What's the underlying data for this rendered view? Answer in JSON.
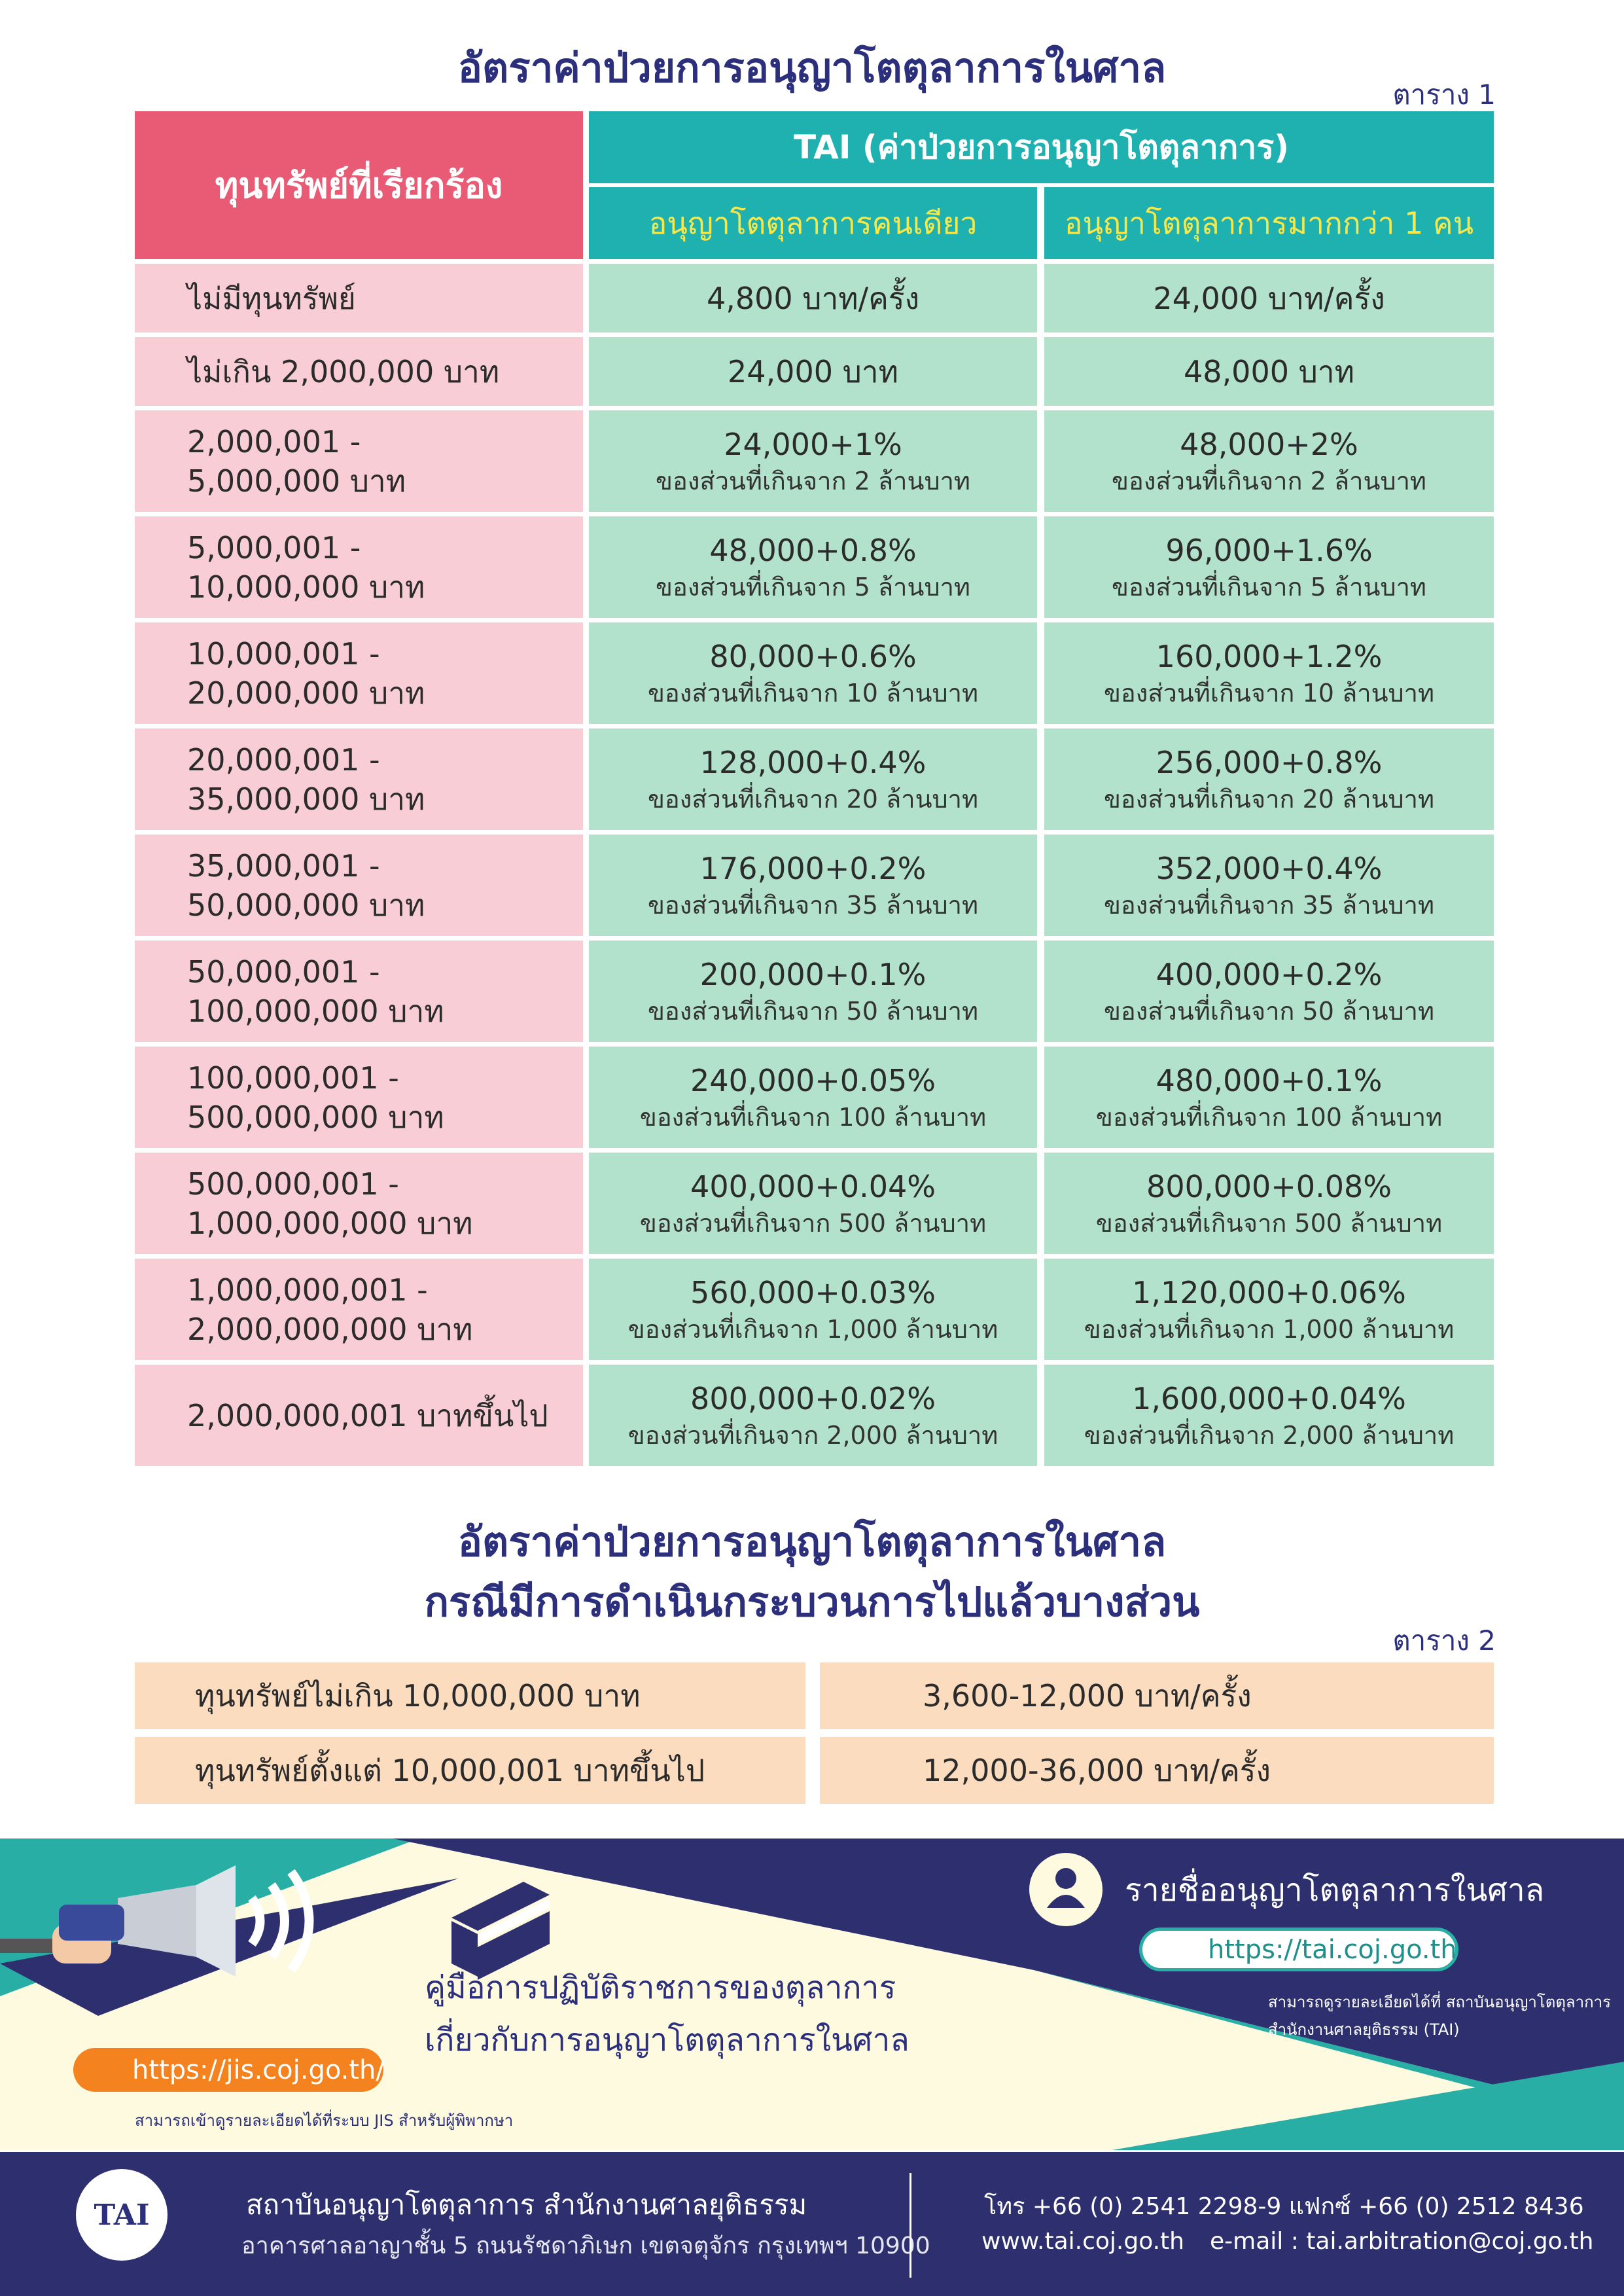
{
  "title": "อัตราค่าป่วยการอนุญาโตตุลาการในศาล",
  "table1": {
    "label": "ตาราง 1",
    "header": {
      "capital": "ทุนทรัพย์ที่เรียกร้อง",
      "tai": "TAI (ค่าป่วยการอนุญาโตตุลาการ)",
      "single": "อนุญาโตตุลาการคนเดียว",
      "multiple": "อนุญาโตตุลาการมากกว่า 1 คน"
    },
    "rows": [
      {
        "capital": [
          "ไม่มีทุนทรัพย์"
        ],
        "single": [
          "4,800 บาท/ครั้ง"
        ],
        "multiple": [
          "24,000 บาท/ครั้ง"
        ]
      },
      {
        "capital": [
          "ไม่เกิน 2,000,000 บาท"
        ],
        "single": [
          "24,000 บาท"
        ],
        "multiple": [
          "48,000 บาท"
        ]
      },
      {
        "capital": [
          "2,000,001 -",
          "5,000,000 บาท"
        ],
        "single": [
          "24,000+1%",
          "ของส่วนที่เกินจาก 2 ล้านบาท"
        ],
        "multiple": [
          "48,000+2%",
          "ของส่วนที่เกินจาก 2 ล้านบาท"
        ]
      },
      {
        "capital": [
          "5,000,001 -",
          "10,000,000 บาท"
        ],
        "single": [
          "48,000+0.8%",
          "ของส่วนที่เกินจาก 5 ล้านบาท"
        ],
        "multiple": [
          "96,000+1.6%",
          "ของส่วนที่เกินจาก 5 ล้านบาท"
        ]
      },
      {
        "capital": [
          "10,000,001 -",
          "20,000,000 บาท"
        ],
        "single": [
          "80,000+0.6%",
          "ของส่วนที่เกินจาก 10 ล้านบาท"
        ],
        "multiple": [
          "160,000+1.2%",
          "ของส่วนที่เกินจาก 10 ล้านบาท"
        ]
      },
      {
        "capital": [
          "20,000,001 -",
          "35,000,000 บาท"
        ],
        "single": [
          "128,000+0.4%",
          "ของส่วนที่เกินจาก 20 ล้านบาท"
        ],
        "multiple": [
          "256,000+0.8%",
          "ของส่วนที่เกินจาก 20 ล้านบาท"
        ]
      },
      {
        "capital": [
          "35,000,001 -",
          "50,000,000 บาท"
        ],
        "single": [
          "176,000+0.2%",
          "ของส่วนที่เกินจาก 35 ล้านบาท"
        ],
        "multiple": [
          "352,000+0.4%",
          "ของส่วนที่เกินจาก 35 ล้านบาท"
        ]
      },
      {
        "capital": [
          "50,000,001 -",
          "100,000,000 บาท"
        ],
        "single": [
          "200,000+0.1%",
          "ของส่วนที่เกินจาก 50 ล้านบาท"
        ],
        "multiple": [
          "400,000+0.2%",
          "ของส่วนที่เกินจาก 50 ล้านบาท"
        ]
      },
      {
        "capital": [
          "100,000,001 -",
          "500,000,000 บาท"
        ],
        "single": [
          "240,000+0.05%",
          "ของส่วนที่เกินจาก 100 ล้านบาท"
        ],
        "multiple": [
          "480,000+0.1%",
          "ของส่วนที่เกินจาก 100 ล้านบาท"
        ]
      },
      {
        "capital": [
          "500,000,001 -",
          "1,000,000,000 บาท"
        ],
        "single": [
          "400,000+0.04%",
          "ของส่วนที่เกินจาก 500 ล้านบาท"
        ],
        "multiple": [
          "800,000+0.08%",
          "ของส่วนที่เกินจาก 500 ล้านบาท"
        ]
      },
      {
        "capital": [
          "1,000,000,001 -",
          "2,000,000,000 บาท"
        ],
        "single": [
          "560,000+0.03%",
          "ของส่วนที่เกินจาก 1,000 ล้านบาท"
        ],
        "multiple": [
          "1,120,000+0.06%",
          "ของส่วนที่เกินจาก 1,000 ล้านบาท"
        ]
      },
      {
        "capital": [
          "2,000,000,001 บาทขึ้นไป"
        ],
        "single": [
          "800,000+0.02%",
          "ของส่วนที่เกินจาก 2,000 ล้านบาท"
        ],
        "multiple": [
          "1,600,000+0.04%",
          "ของส่วนที่เกินจาก 2,000 ล้านบาท"
        ]
      }
    ]
  },
  "table2": {
    "title": [
      "อัตราค่าป่วยการอนุญาโตตุลาการในศาล",
      "กรณีมีการดำเนินกระบวนการไปแล้วบางส่วน"
    ],
    "label": "ตาราง 2",
    "rows": [
      [
        "ทุนทรัพย์ไม่เกิน 10,000,000 บาท",
        "3,600-12,000 บาท/ครั้ง"
      ],
      [
        "ทุนทรัพย์ตั้งแต่ 10,000,001 บาทขึ้นไป",
        "12,000-36,000 บาท/ครั้ง"
      ]
    ]
  },
  "banner": {
    "manual": [
      "คู่มือการปฏิบัติราชการของตุลาการ",
      "เกี่ยวกับการอนุญาโตตุลาการในศาล"
    ],
    "jis_link": "https://jis.coj.go.th/",
    "jis_note": "สามารถเข้าดูรายละเอียดได้ที่ระบบ JIS สำหรับผู้พิพากษา",
    "list_title": "รายชื่ออนุญาโตตุลาการในศาล",
    "tai_link": "https://tai.coj.go.th",
    "tai_note": [
      "สามารถดูรายละเอียดได้ที่ สถาบันอนุญาโตตุลาการ",
      "สำนักงานศาลยุติธรรม (TAI)"
    ]
  },
  "footer": {
    "logo": "TAI",
    "org": "สถาบันอนุญาโตตุลาการ สำนักงานศาลยุติธรรม",
    "address": "อาคารศาลอาญาชั้น 5 ถนนรัชดาภิเษก เขตจตุจักร กรุงเทพฯ 10900",
    "phone": "โทร +66 (0) 2541 2298-9   แฟกซ์ +66 (0) 2512 8436",
    "web": "www.tai.coj.go.th",
    "email": "e-mail : tai.arbitration@coj.go.th"
  }
}
